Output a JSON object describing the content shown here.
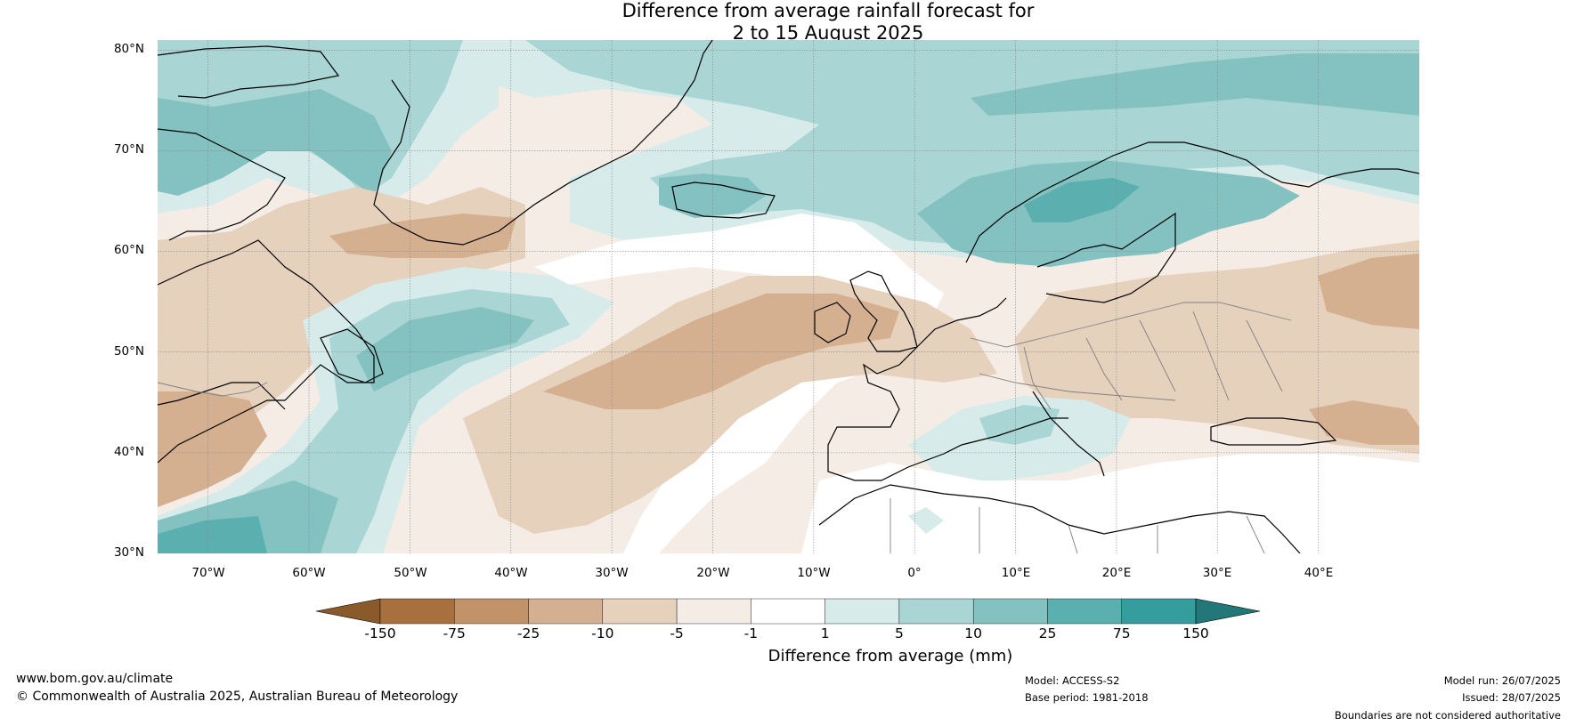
{
  "title": {
    "line1": "Difference from average rainfall forecast for",
    "line2": "2 to 15 August 2025"
  },
  "map": {
    "lon_range": [
      -75,
      50
    ],
    "lat_range": [
      30,
      81
    ],
    "lat_labels": [
      "80°N",
      "70°N",
      "60°N",
      "50°N",
      "40°N",
      "30°N"
    ],
    "lon_labels": [
      "70°W",
      "60°W",
      "50°W",
      "40°W",
      "30°W",
      "20°W",
      "10°W",
      "0°",
      "10°E",
      "20°E",
      "30°E",
      "40°E"
    ],
    "land_color": "#ffffff",
    "coastline_color": "#000000",
    "border_color": "#808080"
  },
  "legend": {
    "title": "Difference from average (mm)",
    "tick_labels": [
      "-150",
      "-75",
      "-25",
      "-10",
      "-5",
      "-1",
      "1",
      "5",
      "10",
      "25",
      "75",
      "150"
    ],
    "colors": [
      "#8a5a2b",
      "#a86f3f",
      "#c29268",
      "#d4b090",
      "#e6d1bd",
      "#f4ece5",
      "#ffffff",
      "#d7ebea",
      "#a9d5d5",
      "#84c1c1",
      "#5cafaf",
      "#349e9e",
      "#227878"
    ]
  },
  "footer": {
    "website": "www.bom.gov.au/climate",
    "copyright": "© Commonwealth of Australia 2025, Australian Bureau of Meteorology",
    "model": "Model: ACCESS-S2",
    "base_period": "Base period: 1981-2018",
    "model_run": "Model run: 26/07/2025",
    "issued": "Issued: 28/07/2025",
    "disclaimer": "Boundaries are not considered authoritative"
  }
}
